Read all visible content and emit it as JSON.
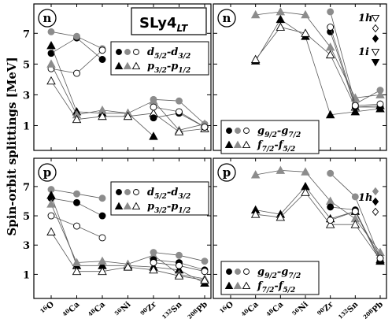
{
  "figure": {
    "title": "SLy4",
    "title_sub": "LT",
    "ylabel": "Spin-orbit splittings [MeV]"
  },
  "colors": {
    "black": "#000000",
    "gray": "#8c8c8c",
    "white": "#ffffff",
    "line": "#5a5a5a"
  },
  "chart_data": [
    {
      "id": "top-left",
      "type": "line",
      "tag": "n",
      "categories": [
        "16O",
        "40Ca",
        "48Ca",
        "56Ni",
        "90Zr",
        "132Sn",
        "208Pb"
      ],
      "ylim": [
        0,
        8.5
      ],
      "yticks": [
        1,
        3,
        5,
        7
      ],
      "legend": {
        "entries": [
          {
            "shape": "circle",
            "label_main": "d",
            "sub1": "5/2",
            "mid": "-d",
            "sub2": "3/2"
          },
          {
            "shape": "triangle",
            "label_main": "p",
            "sub1": "3/2",
            "mid": "-p",
            "sub2": "1/2"
          }
        ]
      },
      "series": [
        {
          "shape": "circle",
          "fill": "black",
          "points": [
            [
              0,
              5.7
            ],
            [
              1,
              6.7
            ],
            [
              2,
              5.3
            ]
          ]
        },
        {
          "shape": "circle",
          "fill": "gray",
          "points": [
            [
              0,
              7.1
            ],
            [
              1,
              6.8
            ],
            [
              2,
              6.0
            ]
          ]
        },
        {
          "shape": "circle",
          "fill": "white",
          "points": [
            [
              0,
              4.7
            ],
            [
              1,
              4.4
            ],
            [
              2,
              5.9
            ]
          ]
        },
        {
          "shape": "triangle",
          "fill": "black",
          "points": [
            [
              0,
              6.2
            ],
            [
              1,
              1.9
            ],
            [
              2,
              1.8
            ],
            [
              3,
              1.8
            ],
            [
              4,
              0.3
            ]
          ]
        },
        {
          "shape": "triangle",
          "fill": "gray",
          "points": [
            [
              0,
              5.0
            ],
            [
              1,
              1.7
            ],
            [
              2,
              2.0
            ],
            [
              3,
              1.8
            ],
            [
              4,
              2.6
            ],
            [
              5,
              0.7
            ],
            [
              6,
              1.1
            ]
          ]
        },
        {
          "shape": "triangle",
          "fill": "white",
          "points": [
            [
              0,
              3.9
            ],
            [
              1,
              1.4
            ],
            [
              2,
              1.6
            ],
            [
              3,
              1.6
            ],
            [
              4,
              1.8
            ],
            [
              5,
              0.6
            ],
            [
              6,
              0.8
            ]
          ]
        },
        {
          "shape": "circle",
          "fill": "black",
          "points": [
            [
              4,
              1.5
            ],
            [
              5,
              1.8
            ],
            [
              6,
              0.9
            ]
          ]
        },
        {
          "shape": "circle",
          "fill": "gray",
          "points": [
            [
              4,
              2.7
            ],
            [
              5,
              2.6
            ],
            [
              6,
              1.1
            ]
          ]
        },
        {
          "shape": "circle",
          "fill": "white",
          "points": [
            [
              4,
              2.2
            ],
            [
              5,
              1.9
            ],
            [
              6,
              0.9
            ]
          ]
        }
      ]
    },
    {
      "id": "top-right",
      "type": "line",
      "tag": "n",
      "categories": [
        "16O",
        "40Ca",
        "48Ca",
        "56Ni",
        "90Zr",
        "132Sn",
        "208Pb"
      ],
      "ylim": [
        0,
        8.5
      ],
      "yticks": [
        1,
        3,
        5,
        7
      ],
      "legend": {
        "entries": [
          {
            "shape": "circle",
            "label_main": "g",
            "sub1": "9/2",
            "mid": "-g",
            "sub2": "7/2"
          },
          {
            "shape": "triangle",
            "label_main": "f",
            "sub1": "7/2",
            "mid": "-f",
            "sub2": "5/2"
          }
        ]
      },
      "side_legend": [
        {
          "label": "1h",
          "markers": [
            {
              "shape": "triangle-down",
              "fill": "white"
            },
            {
              "shape": "diamond",
              "fill": "white"
            },
            {
              "shape": "diamond",
              "fill": "black"
            }
          ]
        },
        {
          "label": "1i",
          "markers": [
            {
              "shape": "triangle-down",
              "fill": "white"
            },
            {
              "shape": "triangle-down",
              "fill": "black"
            }
          ]
        }
      ],
      "series": [
        {
          "shape": "triangle",
          "fill": "black",
          "points": [
            [
              1,
              5.2
            ],
            [
              2,
              7.9
            ],
            [
              3,
              6.8
            ],
            [
              4,
              1.7
            ],
            [
              5,
              1.9
            ],
            [
              6,
              2.1
            ]
          ]
        },
        {
          "shape": "triangle",
          "fill": "gray",
          "points": [
            [
              1,
              8.2
            ],
            [
              2,
              8.4
            ],
            [
              3,
              8.2
            ],
            [
              4,
              6.1
            ],
            [
              5,
              2.8
            ],
            [
              6,
              3.0
            ]
          ]
        },
        {
          "shape": "triangle",
          "fill": "white",
          "points": [
            [
              1,
              5.3
            ],
            [
              2,
              7.4
            ],
            [
              3,
              7.0
            ],
            [
              4,
              5.6
            ],
            [
              5,
              2.2
            ],
            [
              6,
              2.3
            ]
          ]
        },
        {
          "shape": "circle",
          "fill": "black",
          "points": [
            [
              4,
              7.1
            ],
            [
              5,
              2.2
            ],
            [
              6,
              2.2
            ]
          ]
        },
        {
          "shape": "circle",
          "fill": "gray",
          "points": [
            [
              4,
              8.4
            ],
            [
              5,
              2.4
            ],
            [
              6,
              3.3
            ]
          ]
        },
        {
          "shape": "circle",
          "fill": "white",
          "points": [
            [
              4,
              7.4
            ],
            [
              5,
              2.3
            ],
            [
              6,
              2.4
            ]
          ]
        }
      ]
    },
    {
      "id": "bottom-left",
      "type": "line",
      "tag": "p",
      "categories": [
        "16O",
        "40Ca",
        "48Ca",
        "56Ni",
        "90Zr",
        "132Sn",
        "208Pb"
      ],
      "ylim": [
        0,
        8.5
      ],
      "yticks": [
        1,
        3,
        5,
        7
      ],
      "legend": {
        "entries": [
          {
            "shape": "circle",
            "label_main": "d",
            "sub1": "5/2",
            "mid": "-d",
            "sub2": "3/2"
          },
          {
            "shape": "triangle",
            "label_main": "p",
            "sub1": "3/2",
            "mid": "-p",
            "sub2": "1/2"
          }
        ]
      },
      "series": [
        {
          "shape": "circle",
          "fill": "black",
          "points": [
            [
              0,
              6.2
            ],
            [
              1,
              5.9
            ],
            [
              2,
              5.0
            ]
          ]
        },
        {
          "shape": "circle",
          "fill": "gray",
          "points": [
            [
              0,
              6.8
            ],
            [
              1,
              6.5
            ],
            [
              2,
              6.2
            ]
          ]
        },
        {
          "shape": "circle",
          "fill": "white",
          "points": [
            [
              0,
              5.0
            ],
            [
              1,
              4.3
            ],
            [
              2,
              3.5
            ]
          ]
        },
        {
          "shape": "triangle",
          "fill": "black",
          "points": [
            [
              0,
              6.4
            ],
            [
              1,
              1.6
            ],
            [
              2,
              1.6
            ],
            [
              3,
              1.6
            ],
            [
              4,
              1.5
            ],
            [
              5,
              1.3
            ],
            [
              6,
              0.4
            ]
          ]
        },
        {
          "shape": "triangle",
          "fill": "gray",
          "points": [
            [
              0,
              5.8
            ],
            [
              1,
              1.8
            ],
            [
              2,
              1.9
            ],
            [
              3,
              1.7
            ],
            [
              4,
              2.3
            ],
            [
              5,
              1.0
            ],
            [
              6,
              0.7
            ]
          ]
        },
        {
          "shape": "triangle",
          "fill": "white",
          "points": [
            [
              0,
              3.9
            ],
            [
              1,
              1.2
            ],
            [
              2,
              1.2
            ],
            [
              3,
              1.5
            ],
            [
              4,
              1.3
            ],
            [
              5,
              0.9
            ],
            [
              6,
              0.6
            ]
          ]
        },
        {
          "shape": "circle",
          "fill": "black",
          "points": [
            [
              4,
              2.0
            ],
            [
              5,
              1.8
            ],
            [
              6,
              1.3
            ]
          ]
        },
        {
          "shape": "circle",
          "fill": "gray",
          "points": [
            [
              4,
              2.5
            ],
            [
              5,
              2.3
            ],
            [
              6,
              1.9
            ]
          ]
        },
        {
          "shape": "circle",
          "fill": "white",
          "points": [
            [
              4,
              1.8
            ],
            [
              5,
              1.6
            ],
            [
              6,
              1.2
            ]
          ]
        }
      ]
    },
    {
      "id": "bottom-right",
      "type": "line",
      "tag": "p",
      "categories": [
        "16O",
        "40Ca",
        "48Ca",
        "56Ni",
        "90Zr",
        "132Sn",
        "208Pb"
      ],
      "ylim": [
        0,
        8.5
      ],
      "yticks": [
        1,
        3,
        5,
        7
      ],
      "legend": {
        "entries": [
          {
            "shape": "circle",
            "label_main": "g",
            "sub1": "9/2",
            "mid": "-g",
            "sub2": "7/2"
          },
          {
            "shape": "triangle",
            "label_main": "f",
            "sub1": "7/2",
            "mid": "-f",
            "sub2": "5/2"
          }
        ]
      },
      "side_legend": [
        {
          "label": "1h",
          "markers": [
            {
              "shape": "diamond",
              "fill": "gray"
            },
            {
              "shape": "diamond",
              "fill": "black"
            },
            {
              "shape": "diamond",
              "fill": "white"
            }
          ]
        }
      ],
      "series": [
        {
          "shape": "triangle",
          "fill": "black",
          "points": [
            [
              1,
              5.4
            ],
            [
              2,
              5.1
            ],
            [
              3,
              7.0
            ],
            [
              4,
              4.8
            ],
            [
              5,
              5.3
            ],
            [
              6,
              1.9
            ]
          ]
        },
        {
          "shape": "triangle",
          "fill": "gray",
          "points": [
            [
              1,
              7.8
            ],
            [
              2,
              8.1
            ],
            [
              3,
              8.0
            ],
            [
              4,
              6.0
            ],
            [
              5,
              4.8
            ],
            [
              6,
              2.5
            ]
          ]
        },
        {
          "shape": "triangle",
          "fill": "white",
          "points": [
            [
              1,
              5.1
            ],
            [
              2,
              4.9
            ],
            [
              3,
              6.6
            ],
            [
              4,
              4.4
            ],
            [
              5,
              4.4
            ],
            [
              6,
              2.0
            ]
          ]
        },
        {
          "shape": "circle",
          "fill": "black",
          "points": [
            [
              4,
              5.6
            ],
            [
              5,
              5.4
            ],
            [
              6,
              1.9
            ]
          ]
        },
        {
          "shape": "circle",
          "fill": "gray",
          "points": [
            [
              4,
              7.9
            ],
            [
              5,
              6.3
            ],
            [
              6,
              2.1
            ]
          ]
        },
        {
          "shape": "circle",
          "fill": "white",
          "points": [
            [
              4,
              4.7
            ],
            [
              5,
              5.3
            ],
            [
              6,
              2.1
            ]
          ]
        }
      ]
    }
  ]
}
